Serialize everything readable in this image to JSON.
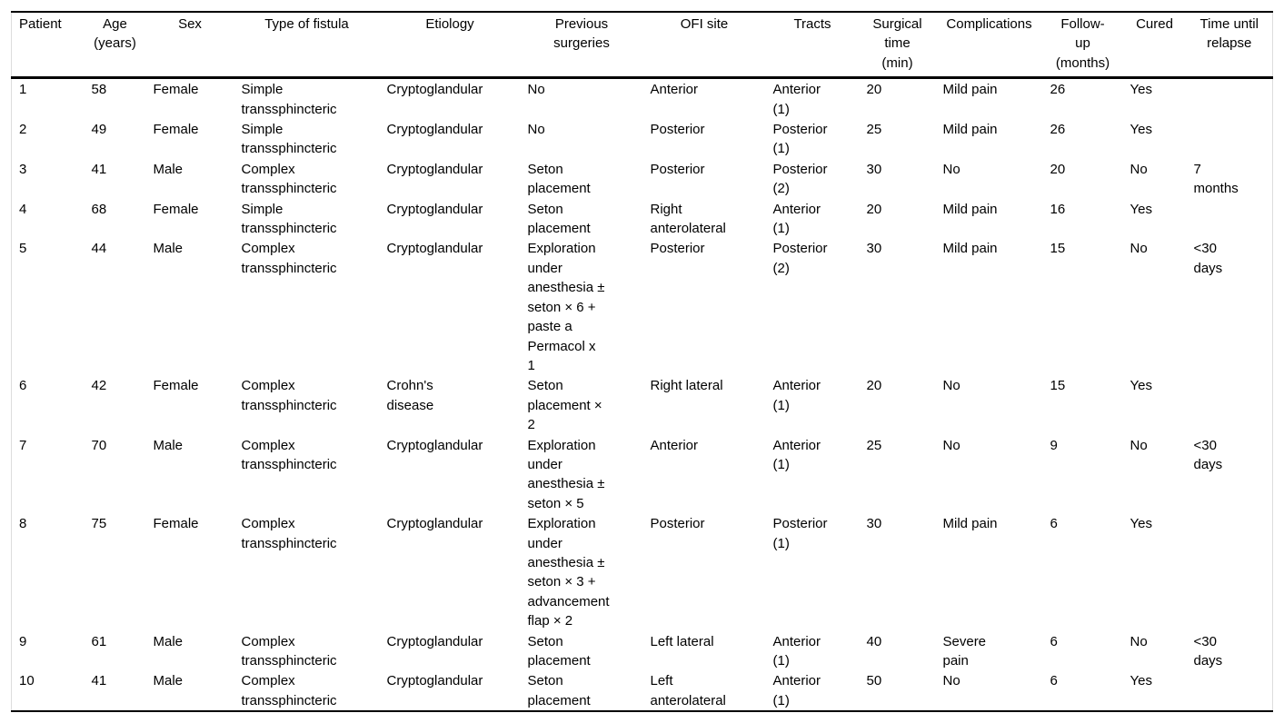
{
  "table": {
    "background": "#ffffff",
    "text_color": "#000000",
    "border_color": "#000000",
    "columns": [
      {
        "id": "patient",
        "label": "Patient"
      },
      {
        "id": "age",
        "label": "Age\n(years)"
      },
      {
        "id": "sex",
        "label": "Sex"
      },
      {
        "id": "type-of-fistula",
        "label": "Type of fistula"
      },
      {
        "id": "etiology",
        "label": "Etiology"
      },
      {
        "id": "previous-surgeries",
        "label": "Previous\nsurgeries"
      },
      {
        "id": "ofi-site",
        "label": "OFI site"
      },
      {
        "id": "tracts",
        "label": "Tracts"
      },
      {
        "id": "surgical-time",
        "label": "Surgical\ntime\n(min)"
      },
      {
        "id": "complications",
        "label": "Complications"
      },
      {
        "id": "follow-up",
        "label": "Follow-\nup\n(months)"
      },
      {
        "id": "cured",
        "label": "Cured"
      },
      {
        "id": "time-until-relapse",
        "label": "Time until\nrelapse"
      }
    ],
    "rows": [
      [
        "1",
        "58",
        "Female",
        "Simple\ntranssphincteric",
        "Cryptoglandular",
        "No",
        "Anterior",
        "Anterior\n(1)",
        "20",
        "Mild pain",
        "26",
        "Yes",
        ""
      ],
      [
        "2",
        "49",
        "Female",
        "Simple\ntranssphincteric",
        "Cryptoglandular",
        "No",
        "Posterior",
        "Posterior\n(1)",
        "25",
        "Mild pain",
        "26",
        "Yes",
        ""
      ],
      [
        "3",
        "41",
        "Male",
        "Complex\ntranssphincteric",
        "Cryptoglandular",
        "Seton\nplacement",
        "Posterior",
        "Posterior\n(2)",
        "30",
        "No",
        "20",
        "No",
        "7\nmonths"
      ],
      [
        "4",
        "68",
        "Female",
        "Simple\ntranssphincteric",
        "Cryptoglandular",
        "Seton\nplacement",
        "Right\nanterolateral",
        "Anterior\n(1)",
        "20",
        "Mild pain",
        "16",
        "Yes",
        ""
      ],
      [
        "5",
        "44",
        "Male",
        "Complex\ntranssphincteric",
        "Cryptoglandular",
        "Exploration\nunder\nanesthesia ±\nseton × 6 +\npaste a\nPermacol x\n1",
        "Posterior",
        "Posterior\n(2)",
        "30",
        "Mild pain",
        "15",
        "No",
        "<30\ndays"
      ],
      [
        "6",
        "42",
        "Female",
        "Complex\ntranssphincteric",
        "Crohn's\ndisease",
        "Seton\nplacement ×\n2",
        "Right lateral",
        "Anterior\n(1)",
        "20",
        "No",
        "15",
        "Yes",
        ""
      ],
      [
        "7",
        "70",
        "Male",
        "Complex\ntranssphincteric",
        "Cryptoglandular",
        "Exploration\nunder\nanesthesia ±\nseton × 5",
        "Anterior",
        "Anterior\n(1)",
        "25",
        "No",
        "9",
        "No",
        "<30\ndays"
      ],
      [
        "8",
        "75",
        "Female",
        "Complex\ntranssphincteric",
        "Cryptoglandular",
        "Exploration\nunder\nanesthesia ±\nseton × 3 +\nadvancement\nflap × 2",
        "Posterior",
        "Posterior\n(1)",
        "30",
        "Mild pain",
        "6",
        "Yes",
        ""
      ],
      [
        "9",
        "61",
        "Male",
        "Complex\ntranssphincteric",
        "Cryptoglandular",
        "Seton\nplacement",
        "Left lateral",
        "Anterior\n(1)",
        "40",
        "Severe\npain",
        "6",
        "No",
        "<30\ndays"
      ],
      [
        "10",
        "41",
        "Male",
        "Complex\ntranssphincteric",
        "Cryptoglandular",
        "Seton\nplacement",
        "Left\nanterolateral",
        "Anterior\n(1)",
        "50",
        "No",
        "6",
        "Yes",
        ""
      ]
    ]
  }
}
